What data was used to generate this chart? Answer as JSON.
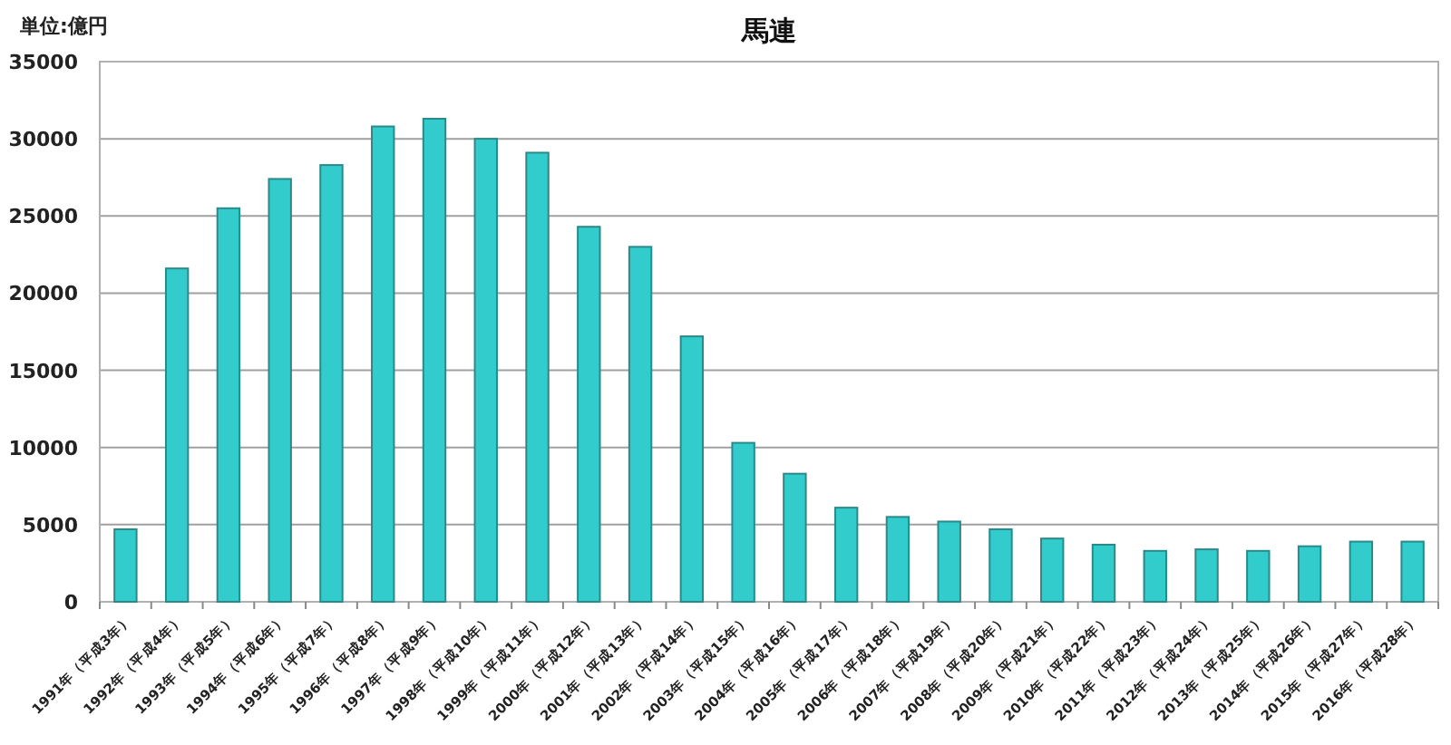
{
  "chart_data": {
    "type": "bar",
    "title": "馬連",
    "annotations": [
      "単位:億円"
    ],
    "categories": [
      "1991年（平成3年）",
      "1992年（平成4年）",
      "1993年（平成5年）",
      "1994年（平成6年）",
      "1995年（平成7年）",
      "1996年（平成8年）",
      "1997年（平成9年）",
      "1998年（平成10年）",
      "1999年（平成11年）",
      "2000年（平成12年）",
      "2001年（平成13年）",
      "2002年（平成14年）",
      "2003年（平成15年）",
      "2004年（平成16年）",
      "2005年（平成17年）",
      "2006年（平成18年）",
      "2007年（平成19年）",
      "2008年（平成20年）",
      "2009年（平成21年）",
      "2010年（平成22年）",
      "2011年（平成23年）",
      "2012年（平成24年）",
      "2013年（平成25年）",
      "2014年（平成26年）",
      "2015年（平成27年）",
      "2016年（平成28年）"
    ],
    "values": [
      4700,
      21600,
      25500,
      27400,
      28300,
      30800,
      31300,
      30000,
      29100,
      24300,
      23000,
      17200,
      10300,
      8300,
      6100,
      5500,
      5200,
      4700,
      4100,
      3700,
      3300,
      3400,
      3300,
      3600,
      3900,
      3900
    ],
    "color": "#33cccc",
    "ylim": [
      0,
      35000
    ],
    "yticks": [
      0,
      5000,
      10000,
      15000,
      20000,
      25000,
      30000,
      35000
    ],
    "grid": "y"
  }
}
